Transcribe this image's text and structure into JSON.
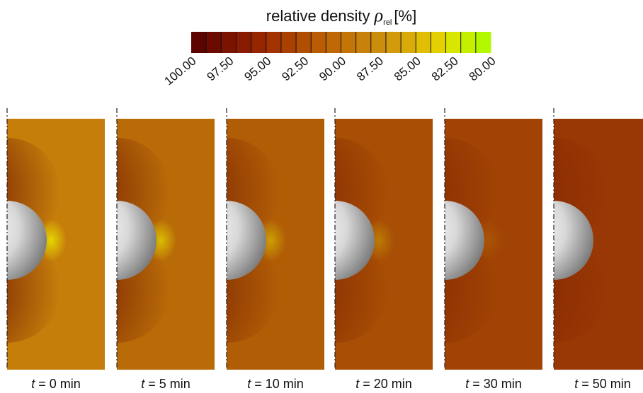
{
  "colorbar": {
    "title": {
      "text": "relative density",
      "symbol": "ρ",
      "subscript": "rel",
      "unit": "[%]"
    },
    "tick_labels": [
      "100.00",
      "97.50",
      "95.00",
      "92.50",
      "90.00",
      "87.50",
      "85.00",
      "82.50",
      "80.00"
    ],
    "colors": [
      "#5c0400",
      "#6b0b00",
      "#7a1300",
      "#891c00",
      "#962600",
      "#a23300",
      "#aa4000",
      "#b24e02",
      "#b95c04",
      "#bf6906",
      "#c47508",
      "#c8810a",
      "#cd8d0c",
      "#d29b0b",
      "#d8ab08",
      "#dfbe04",
      "#e4d000",
      "#d8e600",
      "#c4f000",
      "#b4f800"
    ]
  },
  "panels": [
    {
      "var": "t",
      "text": "= 0 min",
      "color": "#c67e0b"
    },
    {
      "var": "t",
      "text": "= 5 min",
      "color": "#b96b08"
    },
    {
      "var": "t",
      "text": "= 10 min",
      "color": "#b15d06"
    },
    {
      "var": "t",
      "text": "= 20 min",
      "color": "#a84e05"
    },
    {
      "var": "t",
      "text": "= 30 min",
      "color": "#a14304"
    },
    {
      "var": "t",
      "text": "= 50 min",
      "color": "#993804"
    }
  ]
}
